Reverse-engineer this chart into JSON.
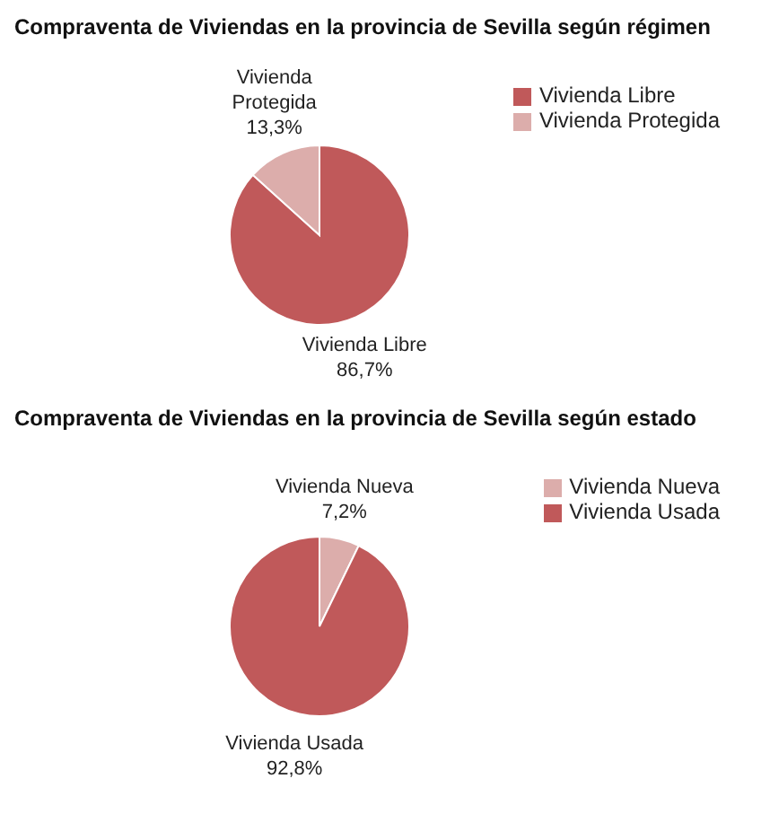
{
  "chart_data": [
    {
      "type": "pie",
      "title": "Compraventa de Viviendas en la provincia de Sevilla según régimen",
      "categories": [
        "Vivienda Libre",
        "Vivienda Protegida"
      ],
      "values": [
        86.7,
        13.3
      ],
      "value_labels": [
        "86,7%",
        "13,3%"
      ],
      "colors": [
        "#c0595a",
        "#dcadab"
      ],
      "legend": "right"
    },
    {
      "type": "pie",
      "title": "Compraventa de Viviendas en la provincia de Sevilla según estado",
      "categories": [
        "Vivienda Nueva",
        "Vivienda Usada"
      ],
      "values": [
        7.2,
        92.8
      ],
      "value_labels": [
        "7,2%",
        "92,8%"
      ],
      "colors": [
        "#dcadab",
        "#c0595a"
      ],
      "legend": "right"
    }
  ]
}
